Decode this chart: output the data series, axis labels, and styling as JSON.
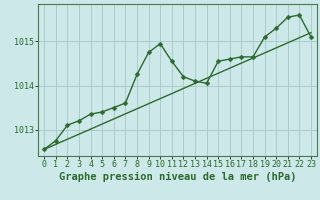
{
  "title": "Graphe pression niveau de la mer (hPa)",
  "background_color": "#cce8e8",
  "line_color": "#2d6a2d",
  "grid_color": "#a8c8c8",
  "xlim": [
    -0.5,
    23.5
  ],
  "ylim": [
    1012.4,
    1015.85
  ],
  "yticks": [
    1013,
    1014,
    1015
  ],
  "xticks": [
    0,
    1,
    2,
    3,
    4,
    5,
    6,
    7,
    8,
    9,
    10,
    11,
    12,
    13,
    14,
    15,
    16,
    17,
    18,
    19,
    20,
    21,
    22,
    23
  ],
  "hours": [
    0,
    1,
    2,
    3,
    4,
    5,
    6,
    7,
    8,
    9,
    10,
    11,
    12,
    13,
    14,
    15,
    16,
    17,
    18,
    19,
    20,
    21,
    22,
    23
  ],
  "pressure": [
    1012.55,
    1012.75,
    1013.1,
    1013.2,
    1013.35,
    1013.4,
    1013.5,
    1013.6,
    1014.25,
    1014.75,
    1014.95,
    1014.55,
    1014.2,
    1014.1,
    1014.05,
    1014.55,
    1014.6,
    1014.65,
    1014.65,
    1015.1,
    1015.3,
    1015.55,
    1015.6,
    1015.1
  ],
  "trend_x": [
    0,
    23
  ],
  "trend_y": [
    1012.55,
    1015.2
  ],
  "marker_size": 2.5,
  "linewidth": 1.0,
  "tick_fontsize": 6,
  "label_fontsize": 7.5
}
